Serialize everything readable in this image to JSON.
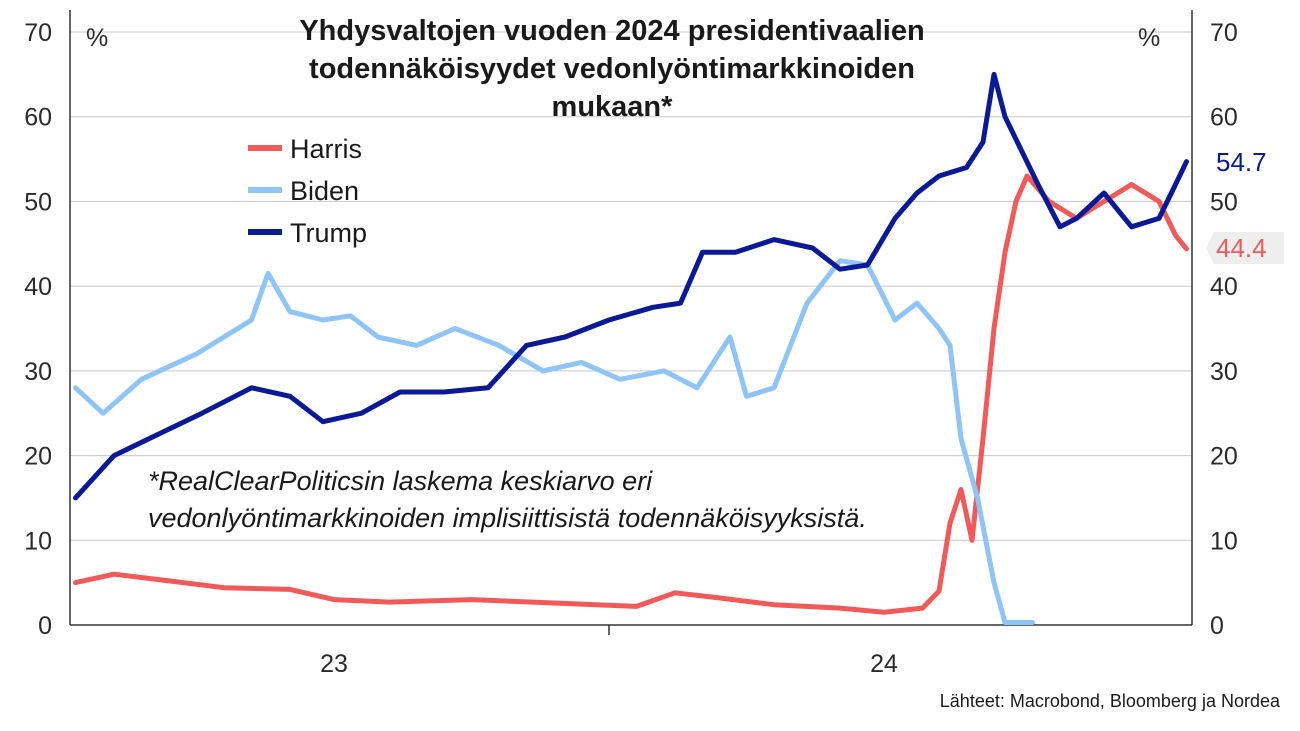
{
  "chart_data": {
    "type": "line",
    "title_lines": [
      "Yhdysvaltojen vuoden 2024 presidentivaalien",
      "todennäköisyydet vedonlyöntimarkkinoiden",
      "mukaan*"
    ],
    "y_unit_left": "%",
    "y_unit_right": "%",
    "ylim": [
      0,
      70
    ],
    "y_ticks": [
      0,
      10,
      20,
      30,
      40,
      50,
      60,
      70
    ],
    "x_ticks": [
      {
        "value": 2023.0,
        "label": "23"
      },
      {
        "value": 2024.0,
        "label": "24"
      }
    ],
    "xlim": [
      2022.52,
      2024.56
    ],
    "note_lines": [
      "*RealClearPoliticsin laskema keskiarvo eri",
      "vedonlyöntimarkkinoiden implisiittisistä todennäköisyyksistä."
    ],
    "source": "Lähteet: Macrobond, Bloomberg ja Nordea",
    "grid": true,
    "legend_position": "upper-left",
    "series": [
      {
        "name": "Harris",
        "color": "#f25a5a",
        "end_label": "44.4",
        "points": [
          [
            2022.53,
            5.0
          ],
          [
            2022.6,
            6.0
          ],
          [
            2022.7,
            5.2
          ],
          [
            2022.8,
            4.4
          ],
          [
            2022.92,
            4.2
          ],
          [
            2023.0,
            3.0
          ],
          [
            2023.1,
            2.7
          ],
          [
            2023.25,
            3.0
          ],
          [
            2023.4,
            2.6
          ],
          [
            2023.55,
            2.2
          ],
          [
            2023.62,
            3.8
          ],
          [
            2023.7,
            3.2
          ],
          [
            2023.8,
            2.4
          ],
          [
            2023.92,
            2.0
          ],
          [
            2024.0,
            1.5
          ],
          [
            2024.07,
            2.0
          ],
          [
            2024.1,
            4.0
          ],
          [
            2024.12,
            12.0
          ],
          [
            2024.14,
            16.0
          ],
          [
            2024.16,
            10.0
          ],
          [
            2024.18,
            22.0
          ],
          [
            2024.2,
            35.0
          ],
          [
            2024.22,
            44.0
          ],
          [
            2024.24,
            50.0
          ],
          [
            2024.26,
            53.0
          ],
          [
            2024.3,
            50.0
          ],
          [
            2024.35,
            48.0
          ],
          [
            2024.4,
            50.0
          ],
          [
            2024.45,
            52.0
          ],
          [
            2024.5,
            50.0
          ],
          [
            2024.53,
            46.0
          ],
          [
            2024.55,
            44.4
          ]
        ]
      },
      {
        "name": "Biden",
        "color": "#8fc4f6",
        "points": [
          [
            2022.53,
            28.0
          ],
          [
            2022.58,
            25.0
          ],
          [
            2022.65,
            29.0
          ],
          [
            2022.75,
            32.0
          ],
          [
            2022.85,
            36.0
          ],
          [
            2022.88,
            41.5
          ],
          [
            2022.92,
            37.0
          ],
          [
            2022.98,
            36.0
          ],
          [
            2023.03,
            36.5
          ],
          [
            2023.08,
            34.0
          ],
          [
            2023.15,
            33.0
          ],
          [
            2023.22,
            35.0
          ],
          [
            2023.3,
            33.0
          ],
          [
            2023.38,
            30.0
          ],
          [
            2023.45,
            31.0
          ],
          [
            2023.52,
            29.0
          ],
          [
            2023.6,
            30.0
          ],
          [
            2023.66,
            28.0
          ],
          [
            2023.72,
            34.0
          ],
          [
            2023.75,
            27.0
          ],
          [
            2023.8,
            28.0
          ],
          [
            2023.86,
            38.0
          ],
          [
            2023.92,
            43.0
          ],
          [
            2023.97,
            42.5
          ],
          [
            2024.02,
            36.0
          ],
          [
            2024.06,
            38.0
          ],
          [
            2024.1,
            35.0
          ],
          [
            2024.12,
            33.0
          ],
          [
            2024.14,
            22.0
          ],
          [
            2024.17,
            15.0
          ],
          [
            2024.2,
            5.0
          ],
          [
            2024.22,
            0.3
          ],
          [
            2024.27,
            0.3
          ]
        ]
      },
      {
        "name": "Trump",
        "color": "#0a1996",
        "end_label": "54.7",
        "points": [
          [
            2022.53,
            15.0
          ],
          [
            2022.6,
            20.0
          ],
          [
            2022.68,
            22.5
          ],
          [
            2022.76,
            25.0
          ],
          [
            2022.85,
            28.0
          ],
          [
            2022.92,
            27.0
          ],
          [
            2022.98,
            24.0
          ],
          [
            2023.05,
            25.0
          ],
          [
            2023.12,
            27.5
          ],
          [
            2023.2,
            27.5
          ],
          [
            2023.28,
            28.0
          ],
          [
            2023.35,
            33.0
          ],
          [
            2023.42,
            34.0
          ],
          [
            2023.5,
            36.0
          ],
          [
            2023.58,
            37.5
          ],
          [
            2023.63,
            38.0
          ],
          [
            2023.67,
            44.0
          ],
          [
            2023.73,
            44.0
          ],
          [
            2023.8,
            45.5
          ],
          [
            2023.87,
            44.5
          ],
          [
            2023.92,
            42.0
          ],
          [
            2023.97,
            42.5
          ],
          [
            2024.02,
            48.0
          ],
          [
            2024.06,
            51.0
          ],
          [
            2024.1,
            53.0
          ],
          [
            2024.15,
            54.0
          ],
          [
            2024.18,
            57.0
          ],
          [
            2024.2,
            65.0
          ],
          [
            2024.22,
            60.0
          ],
          [
            2024.25,
            56.0
          ],
          [
            2024.28,
            52.0
          ],
          [
            2024.32,
            47.0
          ],
          [
            2024.35,
            48.0
          ],
          [
            2024.4,
            51.0
          ],
          [
            2024.45,
            47.0
          ],
          [
            2024.5,
            48.0
          ],
          [
            2024.53,
            52.0
          ],
          [
            2024.55,
            54.7
          ]
        ]
      }
    ]
  }
}
